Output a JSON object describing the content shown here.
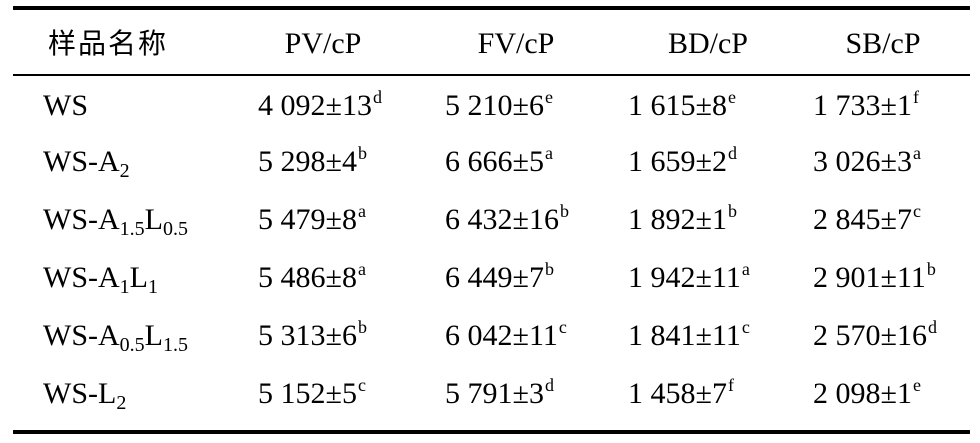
{
  "table": {
    "headers": [
      "样品名称",
      "PV/cP",
      "FV/cP",
      "BD/cP",
      "SB/cP"
    ],
    "rows": [
      {
        "sample": {
          "base": "WS",
          "parts": []
        },
        "cells": [
          {
            "value": "4 092±13",
            "sup": "d"
          },
          {
            "value": "5 210±6",
            "sup": "e"
          },
          {
            "value": "1 615±8",
            "sup": "e"
          },
          {
            "value": "1 733±1",
            "sup": "f"
          }
        ]
      },
      {
        "sample": {
          "base": "WS-",
          "parts": [
            {
              "t": "A",
              "s": "2"
            }
          ]
        },
        "cells": [
          {
            "value": "5 298±4",
            "sup": "b"
          },
          {
            "value": "6 666±5",
            "sup": "a"
          },
          {
            "value": "1 659±2",
            "sup": "d"
          },
          {
            "value": "3 026±3",
            "sup": "a"
          }
        ]
      },
      {
        "sample": {
          "base": "WS-",
          "parts": [
            {
              "t": "A",
              "s": "1.5"
            },
            {
              "t": "L",
              "s": "0.5"
            }
          ]
        },
        "cells": [
          {
            "value": "5 479±8",
            "sup": "a"
          },
          {
            "value": "6 432±16",
            "sup": "b"
          },
          {
            "value": "1 892±1",
            "sup": "b"
          },
          {
            "value": "2 845±7",
            "sup": "c"
          }
        ]
      },
      {
        "sample": {
          "base": "WS-",
          "parts": [
            {
              "t": "A",
              "s": "1"
            },
            {
              "t": "L",
              "s": "1"
            }
          ]
        },
        "cells": [
          {
            "value": "5 486±8",
            "sup": "a"
          },
          {
            "value": "6 449±7",
            "sup": "b"
          },
          {
            "value": "1 942±11",
            "sup": "a"
          },
          {
            "value": "2 901±11",
            "sup": "b"
          }
        ]
      },
      {
        "sample": {
          "base": "WS-",
          "parts": [
            {
              "t": "A",
              "s": "0.5"
            },
            {
              "t": "L",
              "s": "1.5"
            }
          ]
        },
        "cells": [
          {
            "value": "5 313±6",
            "sup": "b"
          },
          {
            "value": "6 042±11",
            "sup": "c"
          },
          {
            "value": "1 841±11",
            "sup": "c"
          },
          {
            "value": "2 570±16",
            "sup": "d"
          }
        ]
      },
      {
        "sample": {
          "base": "WS-",
          "parts": [
            {
              "t": "L",
              "s": "2"
            }
          ]
        },
        "cells": [
          {
            "value": "5 152±5",
            "sup": "c"
          },
          {
            "value": "5 791±3",
            "sup": "d"
          },
          {
            "value": "1 458±7",
            "sup": "f"
          },
          {
            "value": "2 098±1",
            "sup": "e"
          }
        ]
      }
    ]
  }
}
